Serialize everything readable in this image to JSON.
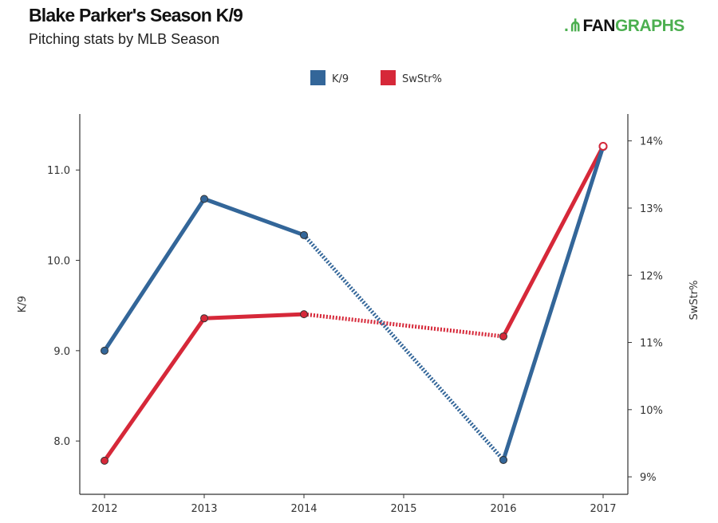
{
  "header": {
    "title": "Blake Parker's Season K/9",
    "subtitle": "Pitching stats by MLB Season",
    "logo_text": "FANGRAPHS"
  },
  "chart_data": {
    "type": "line",
    "title": "Blake Parker's Season K/9",
    "subtitle": "Pitching stats by MLB Season",
    "x": [
      2012,
      2013,
      2014,
      2015,
      2016,
      2017
    ],
    "xticks": [
      "2012",
      "2013",
      "2014",
      "2015",
      "2016",
      "2017"
    ],
    "series": [
      {
        "name": "K/9",
        "axis": "left",
        "color": "#336699",
        "values": [
          9.0,
          10.68,
          10.28,
          null,
          7.79,
          11.26
        ]
      },
      {
        "name": "SwStr%",
        "axis": "right",
        "color": "#d62839",
        "values": [
          9.24,
          11.36,
          11.42,
          null,
          11.09,
          13.92
        ]
      }
    ],
    "ylabel": "K/9",
    "ylim": [
      7.41,
      11.62
    ],
    "yticks": [
      "8.0",
      "9.0",
      "10.0",
      "11.0"
    ],
    "ytick_values": [
      8,
      9,
      10,
      11
    ],
    "y2label": "SwStr%",
    "y2lim": [
      8.74,
      14.4
    ],
    "y2ticks": [
      "9%",
      "10%",
      "11%",
      "12%",
      "13%",
      "14%"
    ],
    "y2tick_values": [
      9,
      10,
      11,
      12,
      13,
      14
    ],
    "legend": "top-center",
    "grid": false,
    "gap_style": "dotted line across missing 2015"
  }
}
